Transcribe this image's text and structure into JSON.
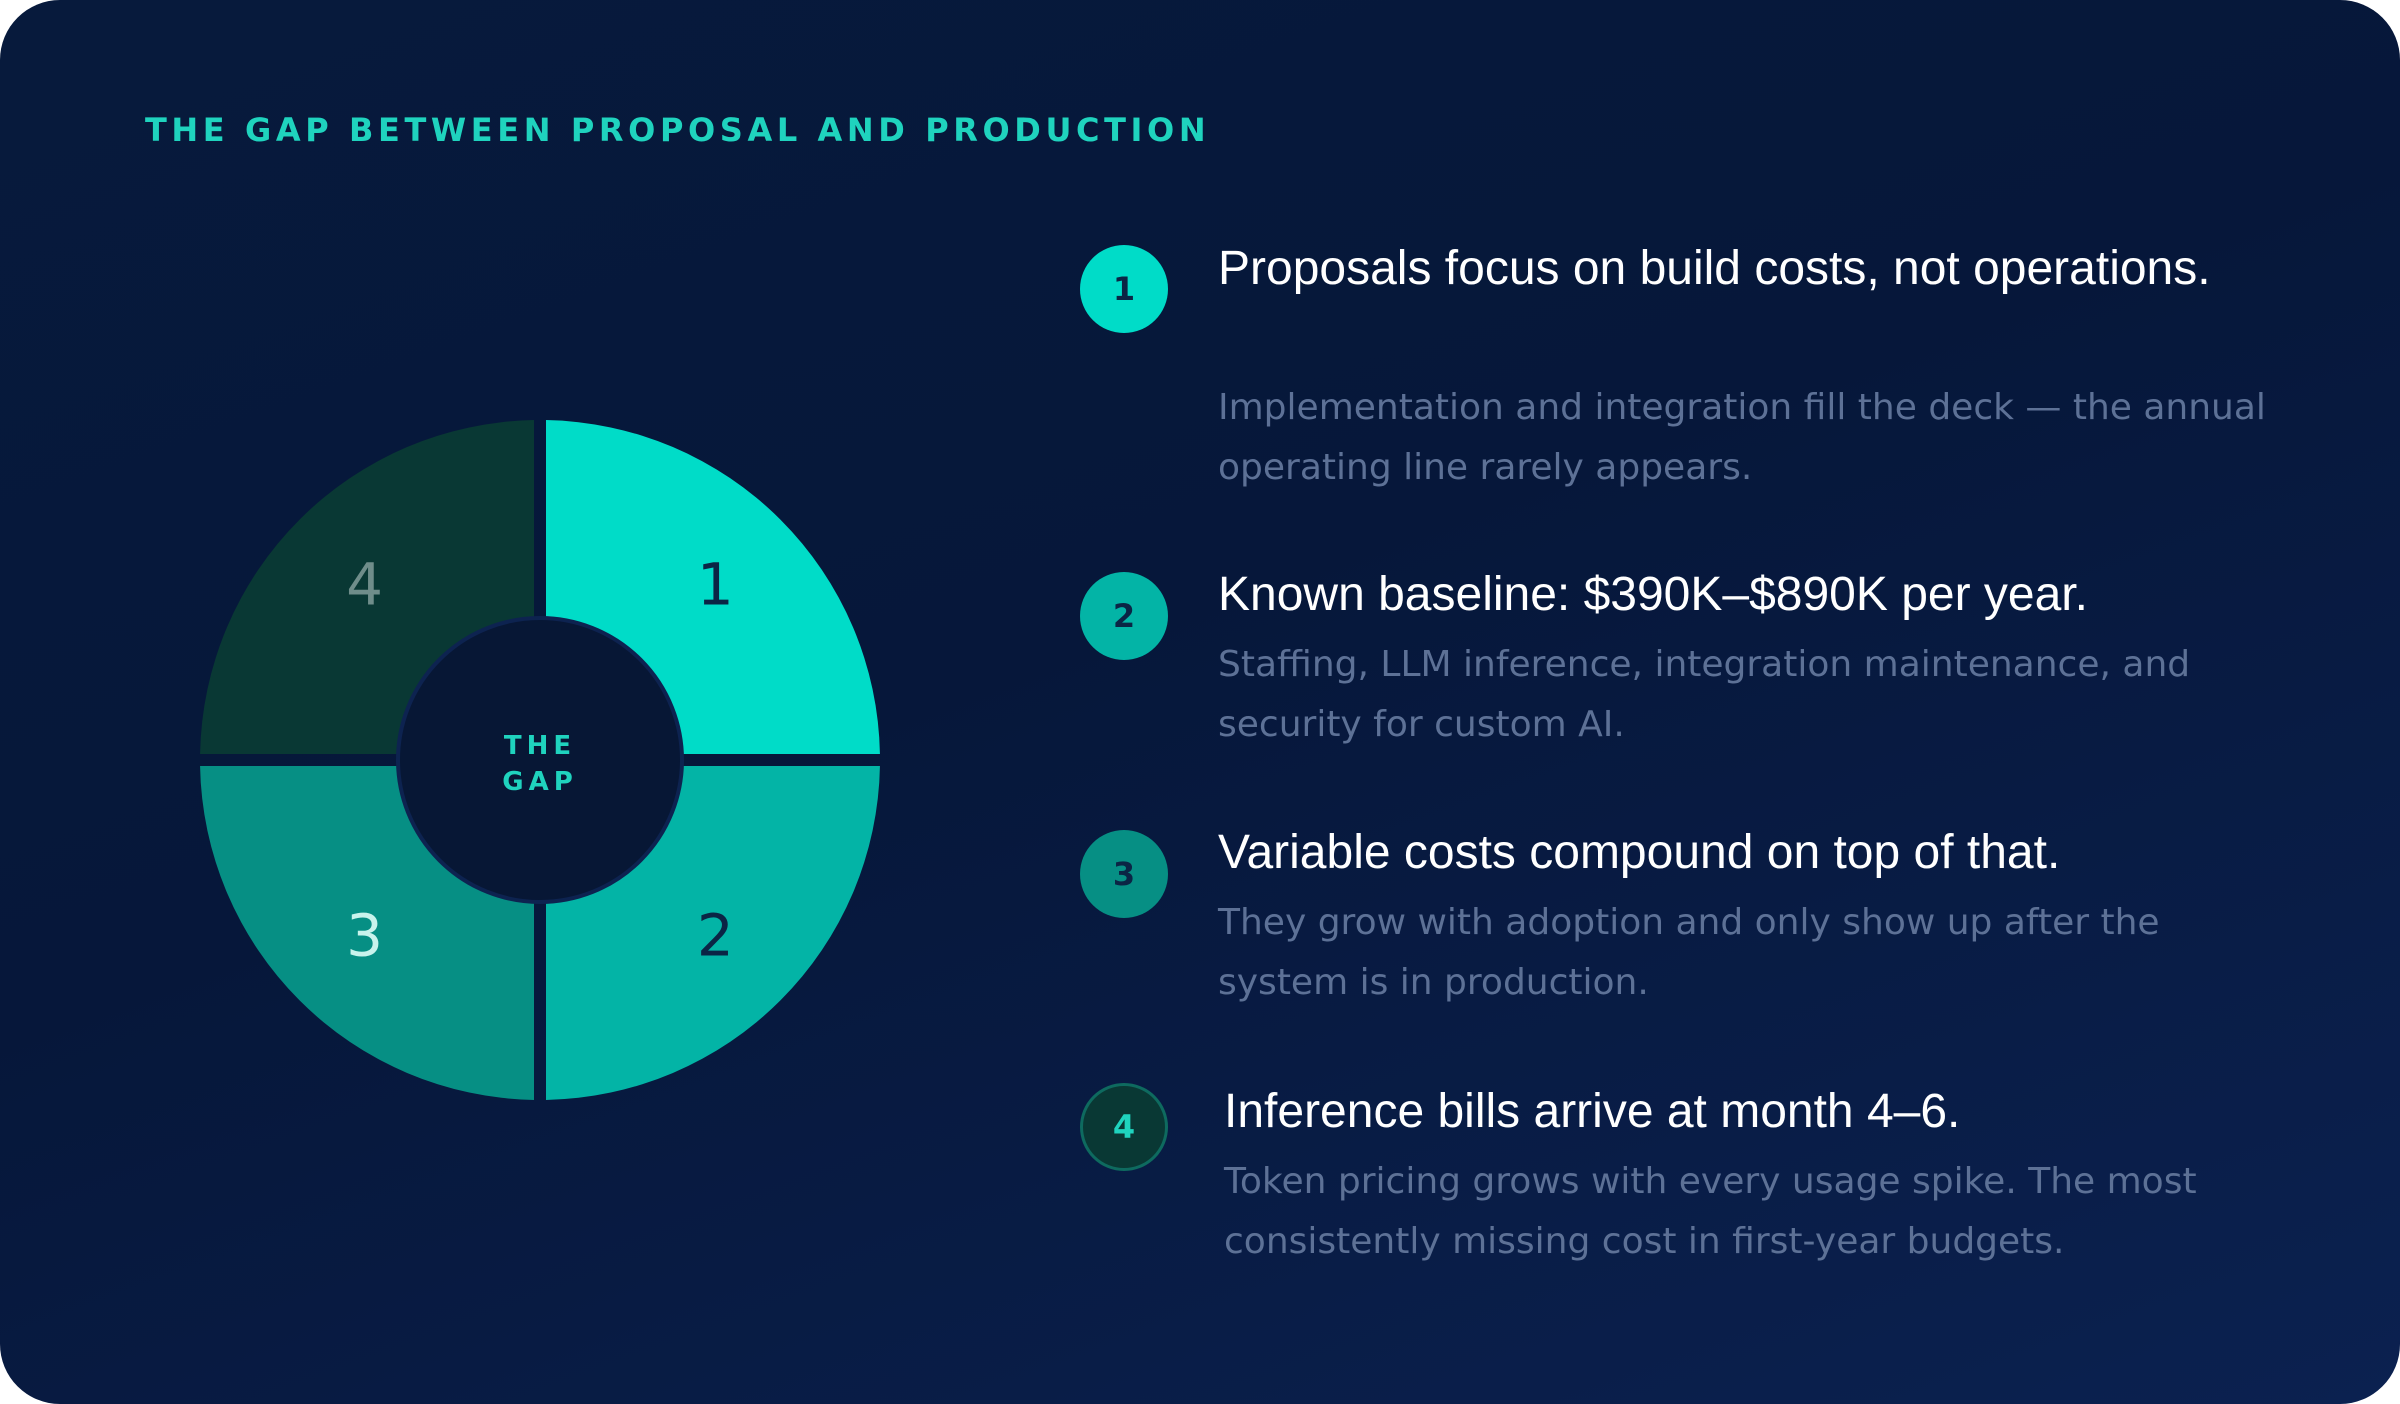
{
  "eyebrow": "THE GAP BETWEEN PROPOSAL AND PRODUCTION",
  "donut": {
    "center_line1": "THE",
    "center_line2": "GAP",
    "center_color": "#1fd3be",
    "segments": [
      {
        "label": "1",
        "color": "#00dcc8",
        "label_color": "#0b2545"
      },
      {
        "label": "2",
        "color": "#03b4a6",
        "label_color": "#0b2545"
      },
      {
        "label": "3",
        "color": "#068f84",
        "label_color": "#c8f3ec"
      },
      {
        "label": "4",
        "color": "#093834",
        "label_color": "#6f8d8a"
      }
    ]
  },
  "items": [
    {
      "number": "1",
      "title": "Proposals focus on build costs, not operations.",
      "description": "Implementation and integration fill the deck — the annual operating line rarely appears."
    },
    {
      "number": "2",
      "title": "Known baseline: $390K–$890K per year.",
      "description": "Staffing, LLM inference, integration maintenance, and security for custom AI."
    },
    {
      "number": "3",
      "title": "Variable costs compound on top of that.",
      "description": "They grow with adoption and only show up after the system is in production."
    },
    {
      "number": "4",
      "title": "Inference bills arrive at month 4–6.",
      "description": "Token pricing grows with every usage spike. The most consistently missing cost in first-year budgets."
    }
  ],
  "colors": {
    "background": "#071a3c",
    "accent": "#1fd3be",
    "title_text": "#ffffff",
    "description_text": "#5d7196",
    "badge_1": "#00dcc8",
    "badge_2": "#03b4a6",
    "badge_3": "#068f84",
    "badge_4": "#093834"
  }
}
